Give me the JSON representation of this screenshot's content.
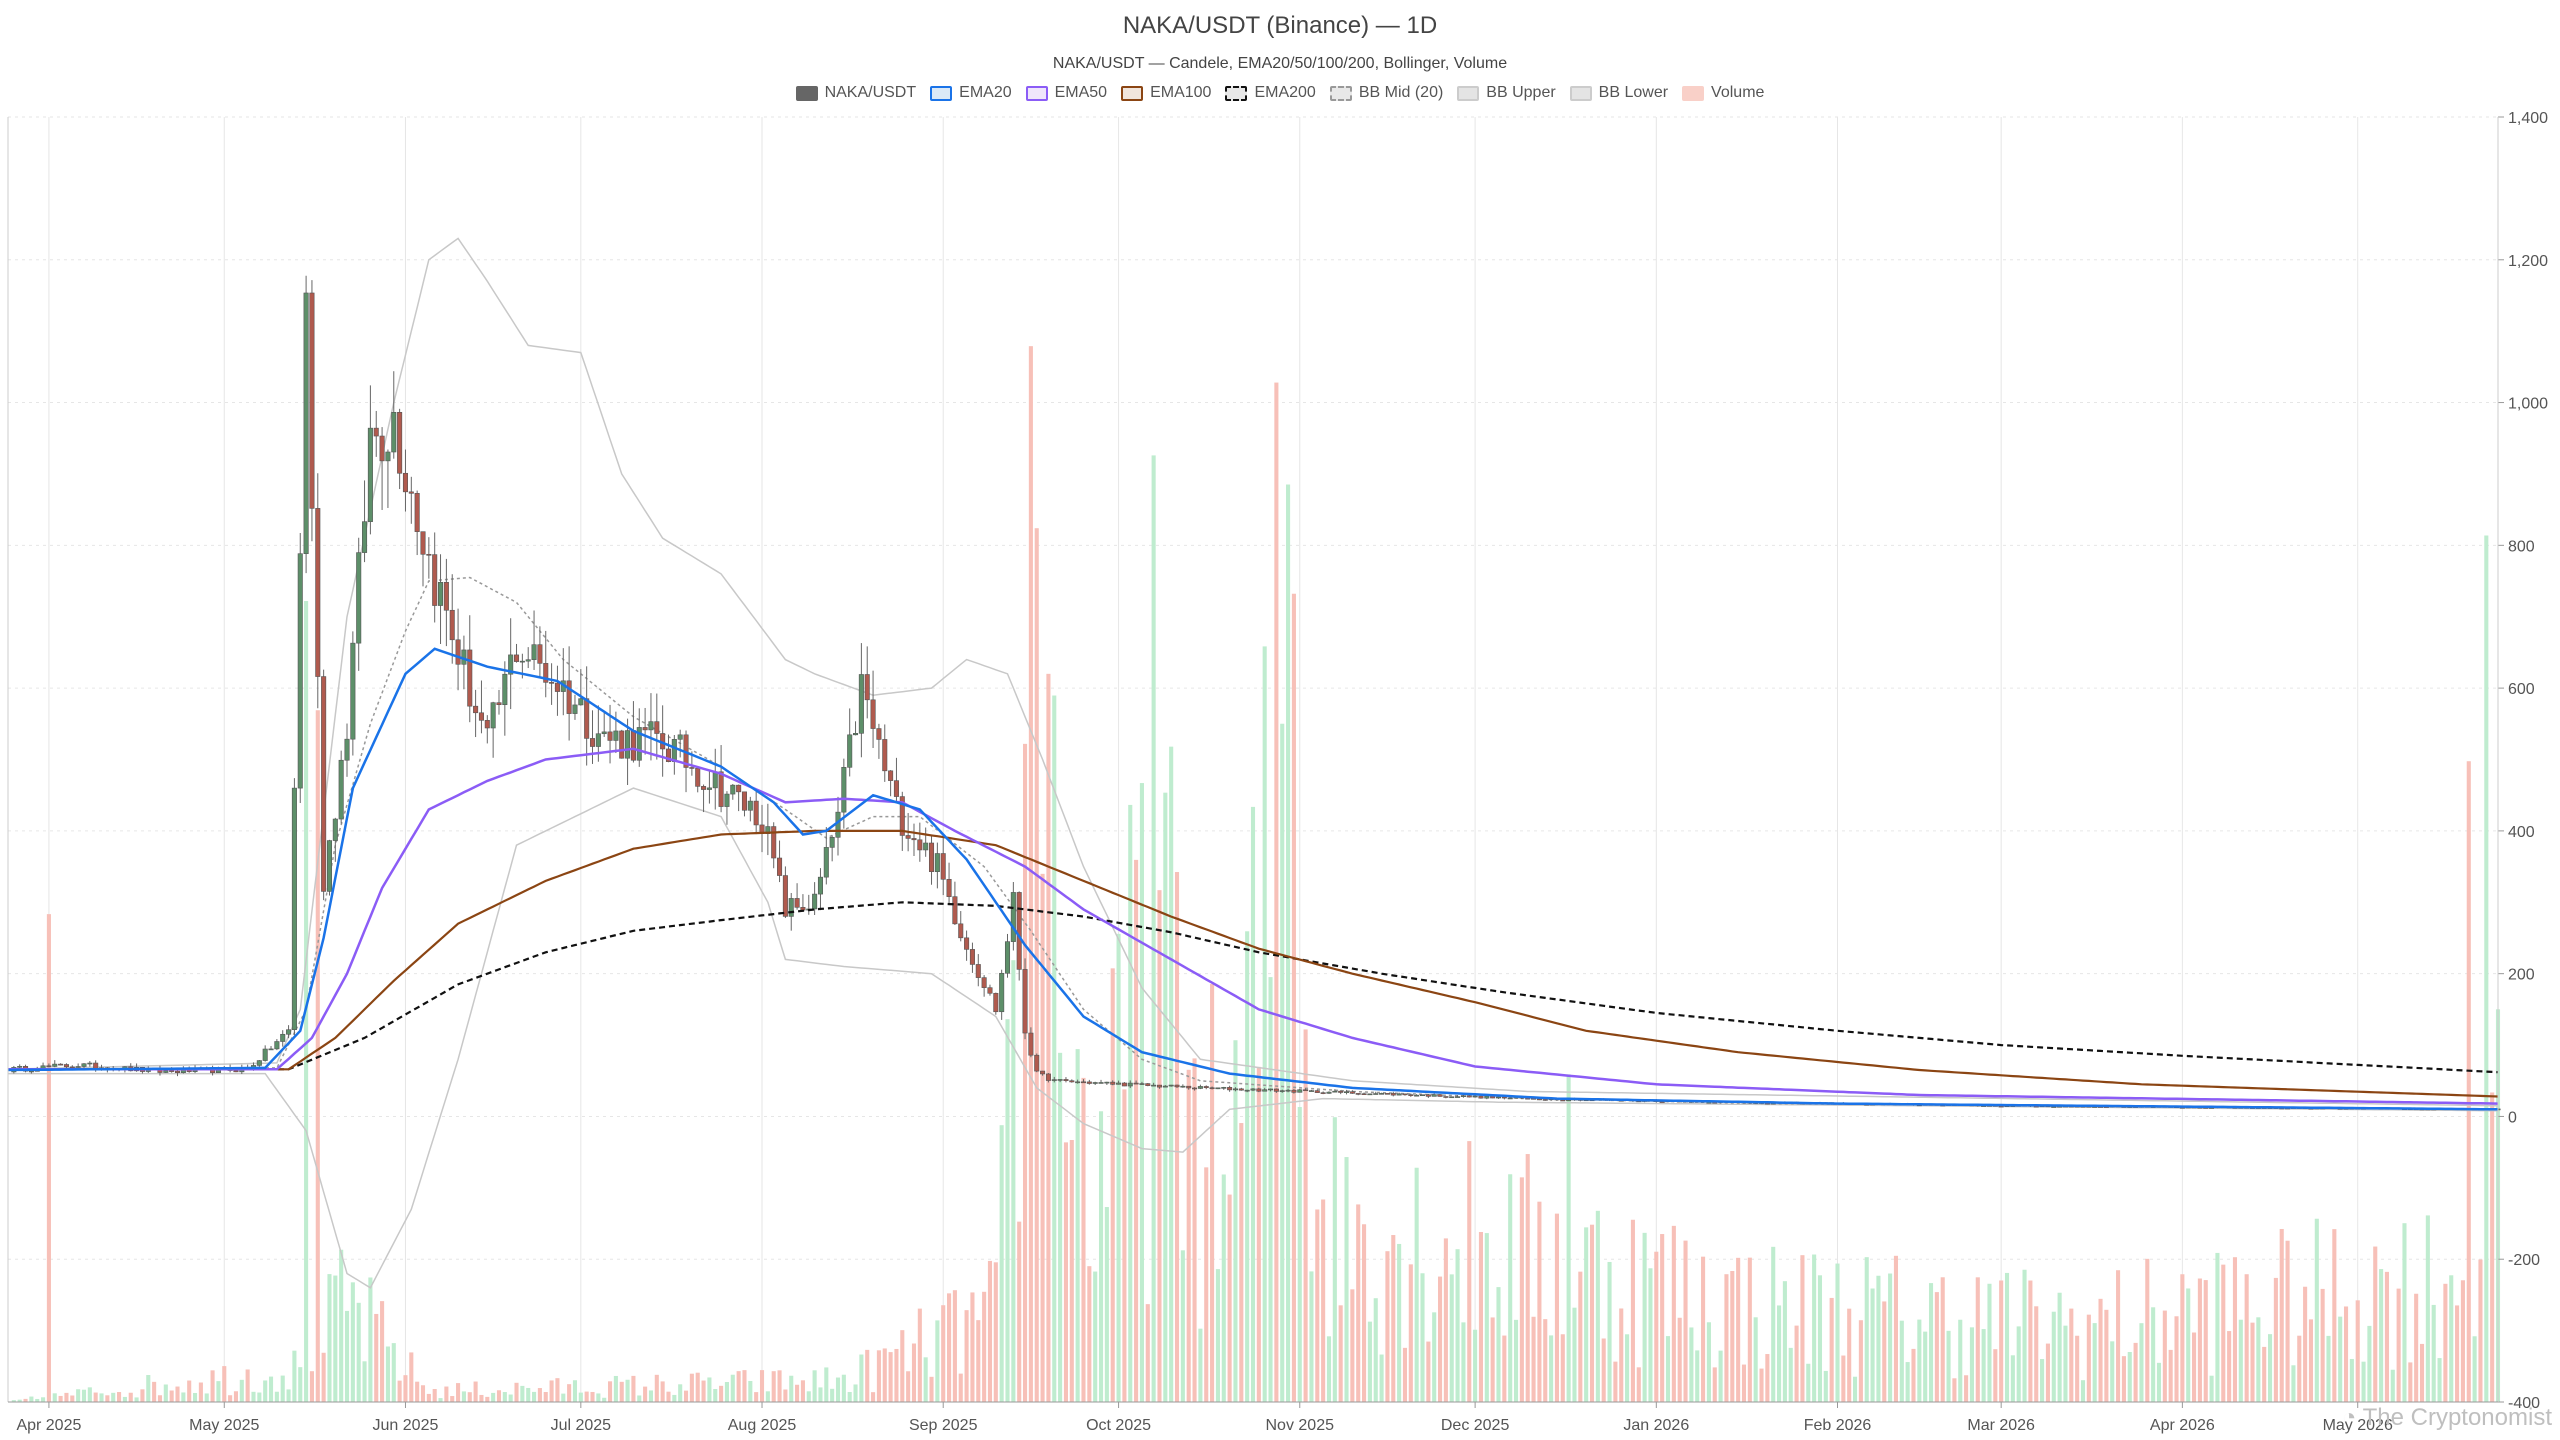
{
  "chart_data": {
    "type": "candlestick",
    "title": "NAKA/USDT (Binance) — 1D",
    "subtitle": "NAKA/USDT — Candele, EMA20/50/100/200, Bollinger, Volume",
    "legend": [
      {
        "name": "NAKA/USDT",
        "color": "#666666",
        "border": "#666666",
        "dashed": false
      },
      {
        "name": "EMA20",
        "color": "#dbe9f7",
        "border": "#1a73e8",
        "dashed": false
      },
      {
        "name": "EMA50",
        "color": "#efe6fb",
        "border": "#8b5cf6",
        "dashed": false
      },
      {
        "name": "EMA100",
        "color": "#f1e5dc",
        "border": "#8b4513",
        "dashed": false
      },
      {
        "name": "EMA200",
        "color": "#e8e8e8",
        "border": "#111111",
        "dashed": true
      },
      {
        "name": "BB Mid (20)",
        "color": "#e8e8e8",
        "border": "#999999",
        "dashed": true
      },
      {
        "name": "BB Upper",
        "color": "#e4e4e4",
        "border": "#cccccc",
        "dashed": false
      },
      {
        "name": "BB Lower",
        "color": "#e4e4e4",
        "border": "#cccccc",
        "dashed": false
      },
      {
        "name": "Volume",
        "color": "#f9d0c8",
        "border": "#f9d0c8",
        "dashed": false
      }
    ],
    "colors": {
      "up": "#5d8f69",
      "down": "#b05a4e",
      "vol_up": "#bfeccf",
      "vol_down": "#f7c0b8",
      "ema20": "#1a73e8",
      "ema50": "#8b5cf6",
      "ema100": "#8b4513",
      "ema200": "#111111",
      "bb": "#c8c8c8",
      "bb_mid": "#999999"
    },
    "y_axis": {
      "min": -400,
      "max": 1400,
      "ticks": [
        "1,400",
        "1,200",
        "1,000",
        "800",
        "600",
        "400",
        "200",
        "0",
        "-200",
        "-400"
      ],
      "tick_values": [
        1400,
        1200,
        1000,
        800,
        600,
        400,
        200,
        0,
        -200,
        -400
      ],
      "position": "right",
      "grid": true
    },
    "x_axis": {
      "start": "2025-03-25",
      "end": "2026-05-25",
      "tick_labels": [
        "Apr 2025",
        "May 2025",
        "Jun 2025",
        "Jul 2025",
        "Aug 2025",
        "Sep 2025",
        "Oct 2025",
        "Nov 2025",
        "Dec 2025",
        "Jan 2026",
        "Feb 2026",
        "Mar 2026",
        "Apr 2026",
        "May 2026"
      ],
      "tick_dates": [
        "2025-04-01",
        "2025-05-01",
        "2025-06-01",
        "2025-07-01",
        "2025-08-01",
        "2025-09-01",
        "2025-10-01",
        "2025-11-01",
        "2025-12-01",
        "2026-01-01",
        "2026-02-01",
        "2026-03-01",
        "2026-04-01",
        "2026-05-01"
      ],
      "grid": true
    },
    "price_anchors": [
      [
        "2025-03-24",
        65
      ],
      [
        "2025-04-06",
        72
      ],
      [
        "2025-04-20",
        63
      ],
      [
        "2025-05-05",
        66
      ],
      [
        "2025-05-12",
        120
      ],
      [
        "2025-05-15",
        1140
      ],
      [
        "2025-05-18",
        330
      ],
      [
        "2025-05-22",
        550
      ],
      [
        "2025-05-26",
        950
      ],
      [
        "2025-05-30",
        980
      ],
      [
        "2025-06-05",
        780
      ],
      [
        "2025-06-10",
        650
      ],
      [
        "2025-06-15",
        520
      ],
      [
        "2025-06-20",
        660
      ],
      [
        "2025-06-27",
        610
      ],
      [
        "2025-07-05",
        530
      ],
      [
        "2025-07-15",
        525
      ],
      [
        "2025-07-25",
        460
      ],
      [
        "2025-08-01",
        420
      ],
      [
        "2025-08-05",
        290
      ],
      [
        "2025-08-10",
        300
      ],
      [
        "2025-08-14",
        420
      ],
      [
        "2025-08-18",
        600
      ],
      [
        "2025-08-24",
        430
      ],
      [
        "2025-08-31",
        350
      ],
      [
        "2025-09-05",
        240
      ],
      [
        "2025-09-10",
        150
      ],
      [
        "2025-09-13",
        300
      ],
      [
        "2025-09-15",
        120
      ],
      [
        "2025-09-17",
        60
      ],
      [
        "2025-09-20",
        50
      ],
      [
        "2025-10-15",
        40
      ],
      [
        "2025-11-10",
        33
      ],
      [
        "2025-12-10",
        25
      ],
      [
        "2026-01-15",
        20
      ],
      [
        "2026-03-01",
        15
      ],
      [
        "2026-05-25",
        10
      ]
    ],
    "ema_anchors": {
      "EMA20": [
        [
          "2025-03-24",
          65
        ],
        [
          "2025-05-08",
          68
        ],
        [
          "2025-05-14",
          120
        ],
        [
          "2025-05-18",
          250
        ],
        [
          "2025-05-23",
          460
        ],
        [
          "2025-06-01",
          620
        ],
        [
          "2025-06-06",
          655
        ],
        [
          "2025-06-15",
          630
        ],
        [
          "2025-06-27",
          610
        ],
        [
          "2025-07-10",
          540
        ],
        [
          "2025-07-25",
          490
        ],
        [
          "2025-08-03",
          440
        ],
        [
          "2025-08-08",
          395
        ],
        [
          "2025-08-12",
          400
        ],
        [
          "2025-08-20",
          450
        ],
        [
          "2025-08-28",
          430
        ],
        [
          "2025-09-05",
          360
        ],
        [
          "2025-09-15",
          240
        ],
        [
          "2025-09-25",
          140
        ],
        [
          "2025-10-05",
          90
        ],
        [
          "2025-10-20",
          60
        ],
        [
          "2025-11-10",
          40
        ],
        [
          "2025-12-15",
          25
        ],
        [
          "2026-02-01",
          18
        ],
        [
          "2026-05-25",
          10
        ]
      ],
      "EMA50": [
        [
          "2025-03-24",
          66
        ],
        [
          "2025-05-10",
          66
        ],
        [
          "2025-05-16",
          110
        ],
        [
          "2025-05-22",
          200
        ],
        [
          "2025-05-28",
          320
        ],
        [
          "2025-06-05",
          430
        ],
        [
          "2025-06-15",
          470
        ],
        [
          "2025-06-25",
          500
        ],
        [
          "2025-07-10",
          515
        ],
        [
          "2025-07-25",
          480
        ],
        [
          "2025-08-05",
          440
        ],
        [
          "2025-08-15",
          445
        ],
        [
          "2025-08-25",
          440
        ],
        [
          "2025-09-03",
          400
        ],
        [
          "2025-09-15",
          350
        ],
        [
          "2025-09-25",
          290
        ],
        [
          "2025-10-10",
          220
        ],
        [
          "2025-10-25",
          150
        ],
        [
          "2025-11-10",
          110
        ],
        [
          "2025-12-01",
          70
        ],
        [
          "2026-01-01",
          45
        ],
        [
          "2026-02-15",
          30
        ],
        [
          "2026-05-25",
          18
        ]
      ],
      "EMA100": [
        [
          "2025-03-24",
          66
        ],
        [
          "2025-05-12",
          66
        ],
        [
          "2025-05-20",
          110
        ],
        [
          "2025-05-30",
          190
        ],
        [
          "2025-06-10",
          270
        ],
        [
          "2025-06-25",
          330
        ],
        [
          "2025-07-10",
          375
        ],
        [
          "2025-07-25",
          395
        ],
        [
          "2025-08-10",
          400
        ],
        [
          "2025-08-25",
          400
        ],
        [
          "2025-09-10",
          380
        ],
        [
          "2025-09-25",
          330
        ],
        [
          "2025-10-10",
          280
        ],
        [
          "2025-10-25",
          235
        ],
        [
          "2025-11-10",
          200
        ],
        [
          "2025-12-01",
          160
        ],
        [
          "2025-12-20",
          120
        ],
        [
          "2026-01-15",
          90
        ],
        [
          "2026-02-15",
          65
        ],
        [
          "2026-03-25",
          45
        ],
        [
          "2026-05-25",
          28
        ]
      ],
      "EMA200": [
        [
          "2025-03-24",
          66
        ],
        [
          "2025-05-12",
          66
        ],
        [
          "2025-05-25",
          110
        ],
        [
          "2025-06-10",
          185
        ],
        [
          "2025-06-25",
          230
        ],
        [
          "2025-07-10",
          260
        ],
        [
          "2025-07-25",
          275
        ],
        [
          "2025-08-10",
          290
        ],
        [
          "2025-08-25",
          300
        ],
        [
          "2025-09-10",
          295
        ],
        [
          "2025-09-25",
          280
        ],
        [
          "2025-10-10",
          258
        ],
        [
          "2025-10-25",
          230
        ],
        [
          "2025-11-15",
          200
        ],
        [
          "2025-12-05",
          175
        ],
        [
          "2026-01-01",
          145
        ],
        [
          "2026-02-01",
          120
        ],
        [
          "2026-03-01",
          100
        ],
        [
          "2026-04-01",
          85
        ],
        [
          "2026-05-25",
          62
        ]
      ]
    },
    "bollinger_anchors": {
      "BB Mid (20)": [
        [
          "2025-03-24",
          66
        ],
        [
          "2025-05-10",
          68
        ],
        [
          "2025-05-15",
          150
        ],
        [
          "2025-05-20",
          380
        ],
        [
          "2025-05-26",
          550
        ],
        [
          "2025-06-01",
          680
        ],
        [
          "2025-06-05",
          750
        ],
        [
          "2025-06-12",
          755
        ],
        [
          "2025-06-20",
          720
        ],
        [
          "2025-06-28",
          640
        ],
        [
          "2025-07-10",
          560
        ],
        [
          "2025-07-25",
          490
        ],
        [
          "2025-08-05",
          430
        ],
        [
          "2025-08-12",
          390
        ],
        [
          "2025-08-20",
          420
        ],
        [
          "2025-08-28",
          420
        ],
        [
          "2025-09-08",
          350
        ],
        [
          "2025-09-16",
          260
        ],
        [
          "2025-09-25",
          150
        ],
        [
          "2025-10-05",
          80
        ],
        [
          "2025-10-15",
          50
        ],
        [
          "2025-11-10",
          35
        ],
        [
          "2025-12-10",
          25
        ],
        [
          "2026-01-20",
          18
        ],
        [
          "2026-05-25",
          10
        ]
      ],
      "BB Upper": [
        [
          "2025-03-24",
          66
        ],
        [
          "2025-05-10",
          75
        ],
        [
          "2025-05-14",
          150
        ],
        [
          "2025-05-22",
          700
        ],
        [
          "2025-05-30",
          1000
        ],
        [
          "2025-06-05",
          1200
        ],
        [
          "2025-06-10",
          1230
        ],
        [
          "2025-06-15",
          1170
        ],
        [
          "2025-06-22",
          1080
        ],
        [
          "2025-07-01",
          1070
        ],
        [
          "2025-07-08",
          900
        ],
        [
          "2025-07-15",
          810
        ],
        [
          "2025-07-25",
          760
        ],
        [
          "2025-08-05",
          640
        ],
        [
          "2025-08-10",
          620
        ],
        [
          "2025-08-20",
          590
        ],
        [
          "2025-08-30",
          600
        ],
        [
          "2025-09-05",
          640
        ],
        [
          "2025-09-12",
          620
        ],
        [
          "2025-09-18",
          500
        ],
        [
          "2025-09-25",
          350
        ],
        [
          "2025-10-05",
          180
        ],
        [
          "2025-10-15",
          80
        ],
        [
          "2025-11-10",
          50
        ],
        [
          "2025-12-10",
          35
        ],
        [
          "2026-05-25",
          15
        ]
      ],
      "BB Lower": [
        [
          "2025-03-24",
          60
        ],
        [
          "2025-05-08",
          60
        ],
        [
          "2025-05-15",
          -20
        ],
        [
          "2025-05-22",
          -220
        ],
        [
          "2025-05-26",
          -240
        ],
        [
          "2025-06-02",
          -130
        ],
        [
          "2025-06-10",
          80
        ],
        [
          "2025-06-20",
          380
        ],
        [
          "2025-06-30",
          420
        ],
        [
          "2025-07-10",
          460
        ],
        [
          "2025-07-25",
          420
        ],
        [
          "2025-08-02",
          300
        ],
        [
          "2025-08-05",
          220
        ],
        [
          "2025-08-15",
          210
        ],
        [
          "2025-08-30",
          200
        ],
        [
          "2025-09-10",
          140
        ],
        [
          "2025-09-17",
          40
        ],
        [
          "2025-09-25",
          -10
        ],
        [
          "2025-10-05",
          -45
        ],
        [
          "2025-10-12",
          -50
        ],
        [
          "2025-10-20",
          10
        ],
        [
          "2025-11-05",
          25
        ],
        [
          "2025-12-05",
          20
        ],
        [
          "2026-05-25",
          8
        ]
      ]
    },
    "volume_anchors": [
      [
        "2025-03-24",
        0
      ],
      [
        "2025-05-14",
        60
      ],
      [
        "2025-05-16",
        100
      ],
      [
        "2025-05-22",
        180
      ],
      [
        "2025-06-05",
        20
      ],
      [
        "2025-08-15",
        40
      ],
      [
        "2025-09-10",
        160
      ],
      [
        "2025-09-15",
        900
      ],
      [
        "2025-09-17",
        1200
      ],
      [
        "2025-09-20",
        900
      ],
      [
        "2025-09-26",
        380
      ],
      [
        "2025-10-08",
        700
      ],
      [
        "2025-10-12",
        560
      ],
      [
        "2025-10-20",
        380
      ],
      [
        "2025-10-29",
        1100
      ],
      [
        "2025-11-05",
        330
      ],
      [
        "2025-12-15",
        260
      ],
      [
        "2026-01-15",
        180
      ],
      [
        "2026-03-15",
        140
      ],
      [
        "2026-05-20",
        230
      ],
      [
        "2026-05-25",
        420
      ]
    ],
    "volume_peaks": [
      [
        "2025-04-01",
        670
      ],
      [
        "2025-05-15",
        1100
      ],
      [
        "2025-05-17",
        950
      ],
      [
        "2025-09-16",
        1450
      ],
      [
        "2025-09-17",
        1200
      ],
      [
        "2025-09-19",
        1000
      ],
      [
        "2025-10-03",
        820
      ],
      [
        "2025-10-05",
        850
      ],
      [
        "2025-10-07",
        1300
      ],
      [
        "2025-10-10",
        900
      ],
      [
        "2025-10-28",
        1400
      ],
      [
        "2025-10-30",
        1260
      ],
      [
        "2025-10-31",
        1110
      ],
      [
        "2025-12-17",
        450
      ],
      [
        "2026-05-20",
        880
      ],
      [
        "2026-05-23",
        1190
      ]
    ]
  }
}
